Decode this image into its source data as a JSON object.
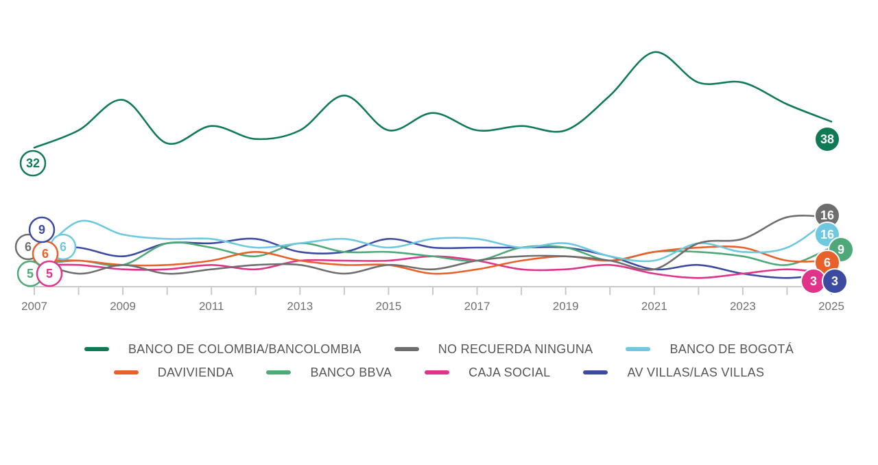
{
  "chart_data": {
    "type": "line",
    "title": "",
    "xlabel": "",
    "ylabel": "",
    "x": [
      2007,
      2008,
      2009,
      2010,
      2011,
      2012,
      2013,
      2014,
      2015,
      2016,
      2017,
      2018,
      2019,
      2020,
      2021,
      2022,
      2023,
      2024,
      2025
    ],
    "x_tick_labels": [
      "2007",
      "2009",
      "2011",
      "2013",
      "2015",
      "2017",
      "2019",
      "2021",
      "2023",
      "2025"
    ],
    "ylim": [
      0,
      60
    ],
    "grid": false,
    "legend_position": "bottom",
    "series": [
      {
        "name": "BANCO DE COLOMBIA/BANCOLOMBIA",
        "color": "#0f7a54",
        "values": [
          32,
          36,
          43,
          33,
          37,
          34,
          36,
          44,
          36,
          40,
          36,
          37,
          36,
          44,
          54,
          47,
          47,
          42,
          38
        ],
        "start_label": "32",
        "end_label": "38"
      },
      {
        "name": "NO RECUERDA NINGUNA",
        "color": "#6e6e6e",
        "values": [
          6,
          3,
          5,
          3,
          4,
          5,
          5,
          3,
          5,
          4,
          6,
          7,
          7,
          6,
          4,
          10,
          11,
          16,
          16
        ],
        "start_label": "6",
        "end_label": "16"
      },
      {
        "name": "BANCO DE BOGOTÁ",
        "color": "#6ec8e0",
        "values": [
          6,
          15,
          12,
          11,
          11,
          9,
          10,
          11,
          9,
          11,
          11,
          9,
          10,
          7,
          6,
          10,
          8,
          9,
          16
        ],
        "start_label": "6",
        "end_label": "16"
      },
      {
        "name": "DAVIVIENDA",
        "color": "#e8602a",
        "values": [
          6,
          6,
          5,
          5,
          6,
          8,
          6,
          5,
          5,
          3,
          4,
          6,
          7,
          6,
          8,
          9,
          9,
          6,
          6
        ],
        "start_label": "6",
        "end_label": "6"
      },
      {
        "name": "BANCO BBVA",
        "color": "#4fa878",
        "values": [
          5,
          6,
          5,
          10,
          9,
          7,
          10,
          8,
          8,
          7,
          6,
          9,
          9,
          6,
          8,
          8,
          7,
          5,
          9
        ],
        "start_label": "5",
        "end_label": "9"
      },
      {
        "name": "CAJA SOCIAL",
        "color": "#e0338a",
        "values": [
          5,
          5,
          4,
          4,
          5,
          4,
          6,
          6,
          6,
          7,
          6,
          4,
          4,
          5,
          3,
          2,
          3,
          4,
          3
        ],
        "start_label": "5",
        "end_label": "3"
      },
      {
        "name": "AV VILLAS/LAS VILLAS",
        "color": "#3c4aa0",
        "values": [
          9,
          9,
          7,
          10,
          10,
          11,
          8,
          8,
          11,
          9,
          9,
          9,
          9,
          7,
          4,
          5,
          3,
          2,
          3
        ],
        "start_label": "9",
        "end_label": "3"
      }
    ]
  }
}
